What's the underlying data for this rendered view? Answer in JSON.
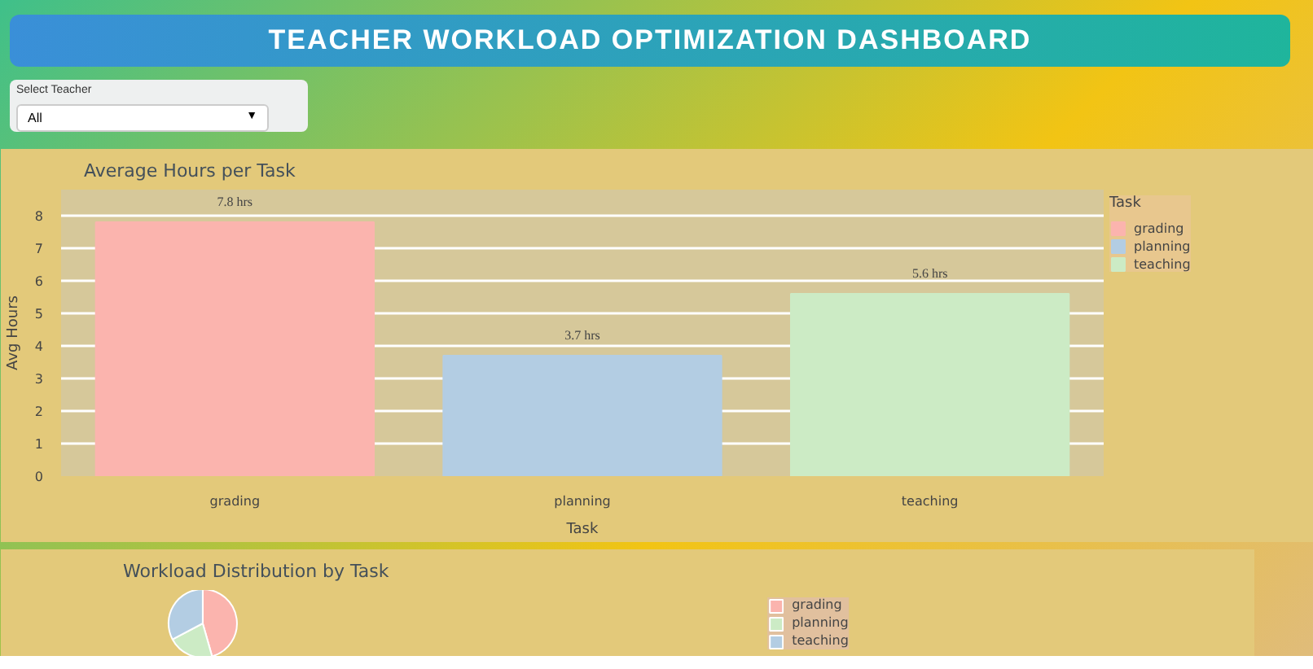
{
  "chart_data": [
    {
      "type": "bar",
      "title": "Average Hours per Task",
      "xlabel": "Task",
      "ylabel": "Avg Hours",
      "legend_title": "Task",
      "categories": [
        "grading",
        "planning",
        "teaching"
      ],
      "series": [
        {
          "name": "grading",
          "color": "#fbb4ae",
          "values": [
            7.8,
            null,
            null
          ],
          "value_labels": [
            "7.8 hrs",
            null,
            null
          ]
        },
        {
          "name": "planning",
          "color": "#b3cde3",
          "values": [
            null,
            3.7,
            null
          ],
          "value_labels": [
            null,
            "3.7 hrs",
            null
          ]
        },
        {
          "name": "teaching",
          "color": "#ccebc5",
          "values": [
            null,
            null,
            5.6
          ],
          "value_labels": [
            null,
            null,
            "5.6 hrs"
          ]
        }
      ],
      "ylim": [
        0,
        8.8
      ],
      "yticks": [
        0,
        1,
        2,
        3,
        4,
        5,
        6,
        7,
        8
      ],
      "grid": "y",
      "legend": "top right",
      "annotations": [
        "TEACHER WORKLOAD OPTIMIZATION DASHBOARD",
        "Select Teacher",
        "All",
        "▼"
      ]
    },
    {
      "type": "pie",
      "title": "Workload Distribution by Task",
      "categories": [
        "grading",
        "planning",
        "teaching"
      ],
      "values": [
        45.6,
        21.7,
        32.7
      ],
      "colors": [
        "#fbb4ae",
        "#ccebc5",
        "#b3cde3"
      ],
      "legend": "right"
    }
  ]
}
